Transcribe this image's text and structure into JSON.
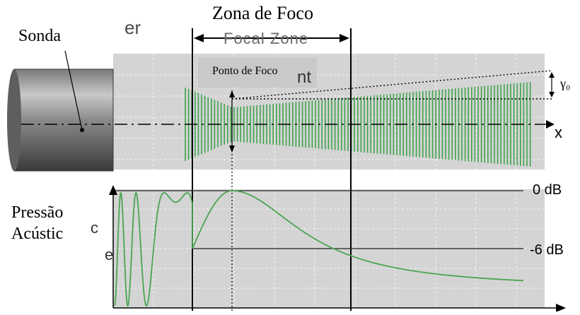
{
  "labels": {
    "focus_zone": "Zona de Foco",
    "probe": "Sonda",
    "focus_point": "Ponto de Foco",
    "pressure_line1": "Pressão",
    "pressure_line2": "Acústic",
    "db_0": "0 dB",
    "db_minus6": "-6 dB",
    "gamma": "γ₀",
    "x_axis": "x"
  },
  "ghost_text": {
    "top_fragment": "er",
    "focal_zone_fragment": "Focal Zone",
    "point_fragment": "nt",
    "left_fragment_1": "c",
    "left_fragment_2": "e"
  },
  "colors": {
    "grid_background": "#d4d4d4",
    "grid_lines": "#f4f4f4",
    "beam_green": "#3fa34d",
    "curve_green": "#5fb35f",
    "axis": "#000000"
  }
}
